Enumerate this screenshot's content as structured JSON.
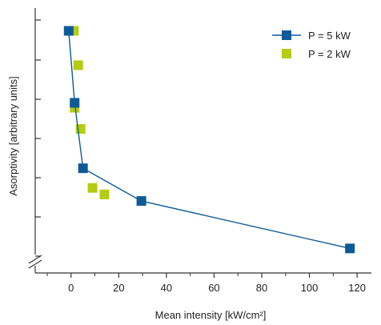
{
  "chart_data": {
    "type": "scatter",
    "xlabel": "Mean intensity [kW/cm²]",
    "ylabel": "Asorptivity [arbitrary units]",
    "xlim": [
      -10,
      125
    ],
    "xticks": [
      0,
      20,
      40,
      60,
      80,
      100,
      120
    ],
    "ylim": [
      0,
      8
    ],
    "y_tick_count": 7,
    "y_tick_labels": "none",
    "y_axis_break": true,
    "grid": false,
    "legend_position": "top-right",
    "series": [
      {
        "name": "P = 5 kW",
        "color": "#0e5a98",
        "marker": "square",
        "line": true,
        "x": [
          -1,
          1.5,
          5,
          29.5,
          117
        ],
        "y": [
          7.4,
          5.2,
          3.2,
          2.2,
          0.75
        ]
      },
      {
        "name": "P = 2 kW",
        "color": "#b4cc12",
        "marker": "square",
        "line": false,
        "x": [
          1.2,
          3,
          1.5,
          4,
          9,
          14
        ],
        "y": [
          7.4,
          6.35,
          5.05,
          4.4,
          2.6,
          2.4
        ]
      }
    ]
  }
}
